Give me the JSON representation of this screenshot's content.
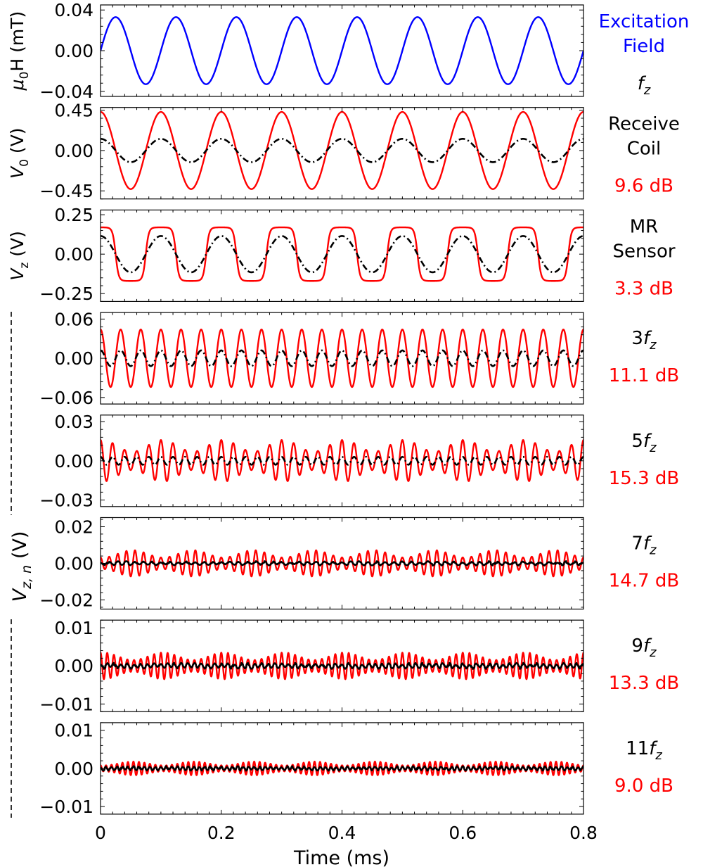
{
  "chart_data": {
    "type": "line",
    "xlabel": "Time (ms)",
    "xlim": [
      0,
      0.8
    ],
    "xticks": [
      "0",
      "0.2",
      "0.4",
      "0.6",
      "0.8"
    ],
    "colors": {
      "excitation": "#0000ff",
      "measured": "#ff0000",
      "reference": "#000000"
    },
    "shared_ylabel": {
      "prefix": "V",
      "sub": "z, n",
      "suffix": " (V)"
    },
    "panels": [
      {
        "id": "excitation",
        "ylabel": {
          "pre": "μ",
          "sub": "0",
          "post": "H (mT)"
        },
        "ylim": [
          -0.045,
          0.045
        ],
        "yticks": [
          "0.04",
          "0.00",
          "−0.04"
        ],
        "ytick_values": [
          0.04,
          0,
          -0.04
        ],
        "label_lines": [
          "Excitation",
          "Field"
        ],
        "label_color": "#0000ff",
        "freq": {
          "n": "",
          "f": "f",
          "sub": "z"
        },
        "db": "",
        "series": [
          {
            "color": "#0000ff",
            "style": "solid",
            "amplitude": 0.033,
            "cycles_per_ms": 10,
            "shape": "sine"
          }
        ]
      },
      {
        "id": "receive-coil",
        "ylabel": {
          "pre": "V",
          "sub": "0",
          "post": " (V)",
          "italic": true
        },
        "ylim": [
          -0.54,
          0.48
        ],
        "yticks": [
          "0.45",
          "0.00",
          "−0.45"
        ],
        "ytick_values": [
          0.45,
          0,
          -0.45
        ],
        "label_lines": [
          "Receive",
          "Coil"
        ],
        "label_color": "#000000",
        "freq": null,
        "db": "9.6 dB",
        "series": [
          {
            "color": "#ff0000",
            "style": "solid",
            "amplitude": 0.43,
            "cycles_per_ms": 10,
            "shape": "cosine"
          },
          {
            "color": "#000000",
            "style": "dashed",
            "amplitude": 0.13,
            "cycles_per_ms": 10,
            "shape": "cosine"
          }
        ]
      },
      {
        "id": "mr-sensor",
        "ylabel": {
          "pre": "V",
          "sub": "z",
          "post": " (V)",
          "italic": true
        },
        "ylim": [
          -0.3,
          0.28
        ],
        "yticks": [
          "0.25",
          "0.00",
          "−0.25"
        ],
        "ytick_values": [
          0.25,
          0,
          -0.25
        ],
        "label_lines": [
          "MR",
          "Sensor"
        ],
        "label_color": "#000000",
        "freq": null,
        "db": "3.3 dB",
        "series": [
          {
            "color": "#ff0000",
            "style": "solid",
            "amplitude": 0.17,
            "cycles_per_ms": 10,
            "shape": "square"
          },
          {
            "color": "#000000",
            "style": "dashed",
            "amplitude": 0.115,
            "cycles_per_ms": 10,
            "shape": "cosine"
          }
        ]
      },
      {
        "id": "harmonic-3",
        "ylabel": null,
        "ylim": [
          -0.07,
          0.07
        ],
        "yticks": [
          "0.06",
          "0.00",
          "−0.06"
        ],
        "ytick_values": [
          0.06,
          0,
          -0.06
        ],
        "label_lines": [],
        "label_color": "#000000",
        "freq": {
          "n": "3",
          "f": "f",
          "sub": "z"
        },
        "db": "11.1 dB",
        "series": [
          {
            "color": "#ff0000",
            "style": "solid",
            "amplitude": 0.044,
            "cycles_per_ms": 30,
            "shape": "cosine"
          },
          {
            "color": "#000000",
            "style": "dashed",
            "amplitude": 0.012,
            "cycles_per_ms": 30,
            "shape": "cosine"
          }
        ]
      },
      {
        "id": "harmonic-5",
        "ylabel": null,
        "ylim": [
          -0.035,
          0.035
        ],
        "yticks": [
          "0.03",
          "0.00",
          "−0.03"
        ],
        "ytick_values": [
          0.03,
          0,
          -0.03
        ],
        "label_lines": [],
        "label_color": "#000000",
        "freq": {
          "n": "5",
          "f": "f",
          "sub": "z"
        },
        "db": "15.3 dB",
        "series": [
          {
            "color": "#ff0000",
            "style": "solid",
            "amplitude": 0.016,
            "cycles_per_ms": 50,
            "shape": "beat"
          },
          {
            "color": "#000000",
            "style": "dashed",
            "amplitude": 0.003,
            "cycles_per_ms": 50,
            "shape": "cosine"
          }
        ]
      },
      {
        "id": "harmonic-7",
        "ylabel": null,
        "ylim": [
          -0.025,
          0.025
        ],
        "yticks": [
          "0.02",
          "0.00",
          "−0.02"
        ],
        "ytick_values": [
          0.02,
          0,
          -0.02
        ],
        "label_lines": [],
        "label_color": "#000000",
        "freq": {
          "n": "7",
          "f": "f",
          "sub": "z"
        },
        "db": "14.7 dB",
        "series": [
          {
            "color": "#ff0000",
            "style": "solid",
            "amplitude": 0.0072,
            "cycles_per_ms": 70,
            "shape": "beat"
          },
          {
            "color": "#000000",
            "style": "solid",
            "amplitude": 0.0012,
            "cycles_per_ms": 70,
            "shape": "noise"
          }
        ]
      },
      {
        "id": "harmonic-9",
        "ylabel": null,
        "ylim": [
          -0.012,
          0.012
        ],
        "yticks": [
          "0.01",
          "0.00",
          "−0.01"
        ],
        "ytick_values": [
          0.01,
          0,
          -0.01
        ],
        "label_lines": [],
        "label_color": "#000000",
        "freq": {
          "n": "9",
          "f": "f",
          "sub": "z"
        },
        "db": "13.3 dB",
        "series": [
          {
            "color": "#ff0000",
            "style": "solid",
            "amplitude": 0.0035,
            "cycles_per_ms": 90,
            "shape": "beat"
          },
          {
            "color": "#000000",
            "style": "solid",
            "amplitude": 0.0008,
            "cycles_per_ms": 90,
            "shape": "noise"
          }
        ]
      },
      {
        "id": "harmonic-11",
        "ylabel": null,
        "ylim": [
          -0.012,
          0.012
        ],
        "yticks": [
          "0.01",
          "0.00",
          "−0.01"
        ],
        "ytick_values": [
          0.01,
          0,
          -0.01
        ],
        "label_lines": [],
        "label_color": "#000000",
        "freq": {
          "n": "11",
          "f": "f",
          "sub": "z"
        },
        "db": "9.0 dB",
        "series": [
          {
            "color": "#ff0000",
            "style": "solid",
            "amplitude": 0.0018,
            "cycles_per_ms": 110,
            "shape": "beat"
          },
          {
            "color": "#000000",
            "style": "solid",
            "amplitude": 0.0006,
            "cycles_per_ms": 110,
            "shape": "noise"
          }
        ]
      }
    ]
  }
}
